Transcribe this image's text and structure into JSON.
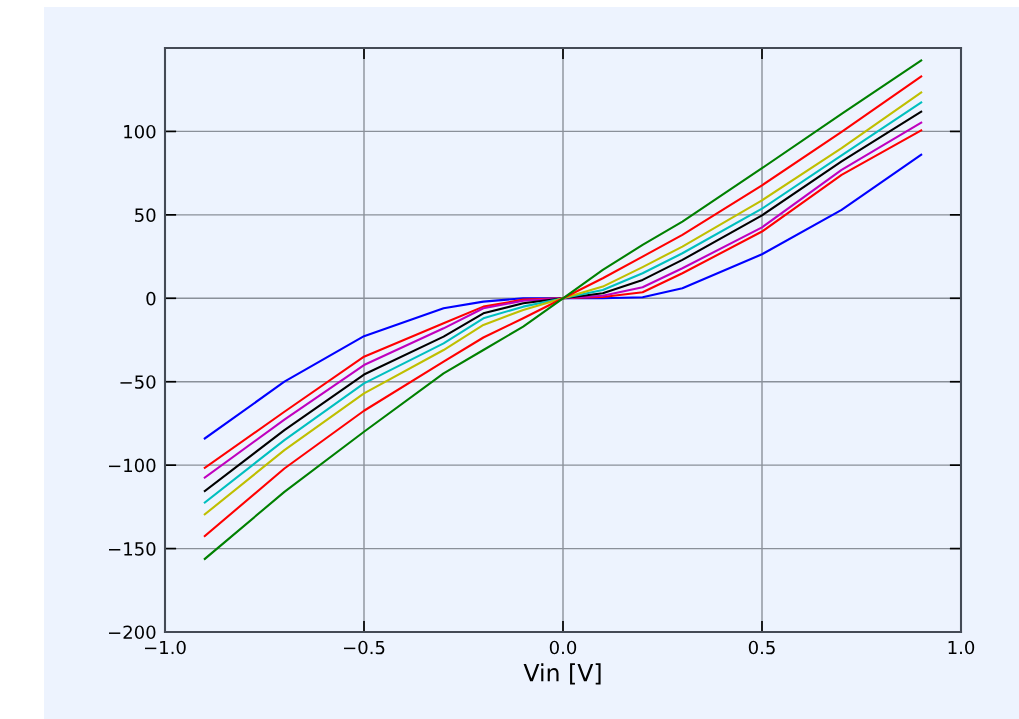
{
  "chart_data": {
    "type": "line",
    "xlabel": "Vin [V]",
    "x": [
      -0.9,
      -0.7,
      -0.5,
      -0.3,
      -0.2,
      -0.1,
      0,
      0.1,
      0.2,
      0.3,
      0.5,
      0.7,
      0.9
    ],
    "series": [
      {
        "color": "#0000ff",
        "values": [
          -84,
          -50,
          -22.7,
          -6,
          -2,
          0,
          0,
          0,
          0.6,
          6,
          26.4,
          53,
          86
        ]
      },
      {
        "color": "#ff0000",
        "values": [
          -101.6,
          -68,
          -35,
          -15,
          -5,
          -0.8,
          0,
          0.8,
          3.6,
          15,
          40,
          74,
          100.6
        ]
      },
      {
        "color": "#bf00bf",
        "values": [
          -107.5,
          -72.7,
          -40,
          -18,
          -6,
          -1.5,
          0,
          1.5,
          6.6,
          18,
          42.5,
          77,
          105.3
        ]
      },
      {
        "color": "#000000",
        "values": [
          -115.5,
          -79,
          -45.7,
          -23,
          -9,
          -3,
          0,
          3,
          11,
          23,
          49.7,
          82,
          111.8
        ]
      },
      {
        "color": "#00bfbf",
        "values": [
          -122.4,
          -85,
          -51,
          -27,
          -12,
          -5,
          0,
          5,
          15,
          27,
          53.7,
          85.7,
          117.4
        ]
      },
      {
        "color": "#bfbf00",
        "values": [
          -129.5,
          -91,
          -57,
          -31,
          -16,
          -7,
          0,
          7,
          18.7,
          31,
          58.7,
          90,
          123.3
        ]
      },
      {
        "color": "#ff0000",
        "values": [
          -142.5,
          -102,
          -67.4,
          -38,
          -23.5,
          -12,
          0,
          12,
          25,
          38,
          67.7,
          99.7,
          132.9
        ]
      },
      {
        "color": "#008000",
        "values": [
          -156.2,
          -116,
          -80,
          -45,
          -31,
          -17,
          0,
          17,
          32,
          46,
          78,
          110.5,
          142.5
        ]
      }
    ],
    "xlim": [
      -1,
      1
    ],
    "ylim": [
      -200,
      150
    ],
    "xticks": [
      {
        "value": -1,
        "label": "−1.0"
      },
      {
        "value": -0.5,
        "label": "−0.5"
      },
      {
        "value": 0,
        "label": "0.0"
      },
      {
        "value": 0.5,
        "label": "0.5"
      },
      {
        "value": 1,
        "label": "1.0"
      }
    ],
    "yticks": [
      {
        "value": -200,
        "label": "−200"
      },
      {
        "value": -150,
        "label": "−150"
      },
      {
        "value": -100,
        "label": "−100"
      },
      {
        "value": -50,
        "label": "−50"
      },
      0,
      50,
      100
    ],
    "grid": true
  }
}
